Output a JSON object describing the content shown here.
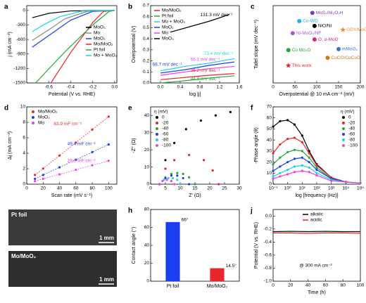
{
  "chart_data": [
    {
      "type": "line",
      "panel": "a",
      "xlabel": "Potential (V vs. RHE)",
      "ylabel": "j (mA cm⁻²)",
      "xlim": [
        -0.8,
        0.02
      ],
      "xticks": [
        -0.6,
        -0.4,
        -0.2,
        {
          "value": 0,
          "label": "0.0"
        }
      ],
      "ylim": [
        -1500,
        100
      ],
      "yticks": [
        0,
        -300,
        -600,
        -900,
        -1200,
        -1500
      ],
      "legend": "center right",
      "series": [
        {
          "name": "MoO₃",
          "color": "#000000",
          "x": [
            0,
            -0.4,
            -0.6,
            -0.75
          ],
          "values": [
            0,
            -10,
            -60,
            -150
          ]
        },
        {
          "name": "Mo",
          "color": "#8a8a8a",
          "x": [
            0,
            -0.25,
            -0.45,
            -0.6,
            -0.75
          ],
          "values": [
            0,
            -20,
            -170,
            -400,
            -620
          ]
        },
        {
          "name": "MoO₂",
          "color": "#1b3ff0",
          "x": [
            0,
            -0.2,
            -0.4,
            -0.6,
            -0.75
          ],
          "values": [
            0,
            -20,
            -200,
            -520,
            -760
          ]
        },
        {
          "name": "Mo/MoO₂",
          "color": "#e8262b",
          "x": [
            0,
            -0.1,
            -0.2,
            -0.4,
            -0.58
          ],
          "values": [
            0,
            -20,
            -250,
            -870,
            -1500
          ]
        },
        {
          "name": "Pt foil",
          "color": "#22a83a",
          "x": [
            0,
            -0.05,
            -0.2,
            -0.45,
            -0.72
          ],
          "values": [
            0,
            -20,
            -300,
            -850,
            -1500
          ]
        },
        {
          "name": "Mo + MoO₃",
          "color": "#16d4e8",
          "x": [
            0,
            -0.3,
            -0.5,
            -0.65,
            -0.75
          ],
          "values": [
            0,
            -15,
            -130,
            -300,
            -440
          ]
        }
      ]
    },
    {
      "type": "line",
      "panel": "b",
      "xlabel": "log |j|",
      "ylabel": "Overpotential (V)",
      "xlim": [
        -0.2,
        1.6
      ],
      "xticks": [
        {
          "value": 0,
          "label": "0.0"
        },
        0.4,
        0.8,
        1.2,
        1.6
      ],
      "ylim": [
        0,
        0.7
      ],
      "yticks": [
        {
          "value": 0,
          "label": "0.0"
        },
        0.1,
        0.2,
        0.3,
        0.4,
        0.5,
        0.6,
        0.7
      ],
      "legend": "upper left",
      "series": [
        {
          "name": "Mo/MoO₂",
          "color": "#e8262b",
          "x": [
            0,
            0.5,
            1.0,
            1.5
          ],
          "values": [
            0.03,
            0.05,
            0.07,
            0.085
          ]
        },
        {
          "name": "Pt foil",
          "color": "#22a83a",
          "x": [
            0,
            0.5,
            1.0,
            1.5
          ],
          "values": [
            0.0,
            0.02,
            0.045,
            0.065
          ]
        },
        {
          "name": "Mo + MoO₃",
          "color": "#16d4e8",
          "x": [
            0,
            0.5,
            1.0,
            1.5
          ],
          "values": [
            0.11,
            0.15,
            0.18,
            0.22
          ]
        },
        {
          "name": "MoO₂",
          "color": "#1b3ff0",
          "x": [
            0,
            0.5,
            1.0,
            1.5
          ],
          "values": [
            0.09,
            0.12,
            0.16,
            0.19
          ]
        },
        {
          "name": "Mo",
          "color": "#ee3fe8",
          "x": [
            0,
            0.5,
            1.0,
            1.5
          ],
          "values": [
            0.07,
            0.1,
            0.13,
            0.15
          ]
        },
        {
          "name": "MoO₃",
          "color": "#000000",
          "x": [
            0.2,
            0.6,
            1.0,
            1.4
          ],
          "values": [
            0.46,
            0.51,
            0.56,
            0.62
          ]
        }
      ],
      "annotations": [
        {
          "text": "131.3 mV dec⁻¹",
          "color": "#000000"
        },
        {
          "text": "73.4 mV dec⁻¹",
          "color": "#16d4e8"
        },
        {
          "text": "68.7 mV dec⁻¹",
          "color": "#1b3ff0"
        },
        {
          "text": "55.1 mV dec⁻¹",
          "color": "#ee3fe8"
        },
        {
          "text": "36.2 mV dec⁻¹",
          "color": "#e8262b"
        },
        {
          "text": "44.8 mV dec⁻¹",
          "color": "#22a83a"
        }
      ]
    },
    {
      "type": "scatter",
      "panel": "c",
      "xlabel": "Overpotential @ 10 mA cm⁻² (mV)",
      "ylabel": "Tafel slope (mV dec⁻¹)",
      "xlim": [
        0,
        200
      ],
      "xticks": [
        0,
        50,
        100,
        150,
        200
      ],
      "ylim": [
        0,
        160
      ],
      "point_labels": true,
      "series": [
        {
          "name": "MoS₂/Ni₃O₂H",
          "color": "#7b3fb0",
          "marker": "circle",
          "x": [
            90
          ],
          "values": [
            145
          ]
        },
        {
          "name": "Co-WO",
          "color": "#16b4e8",
          "marker": "circle",
          "x": [
            60
          ],
          "values": [
            128
          ]
        },
        {
          "name": "NiO/Ni",
          "color": "#000000",
          "marker": "circle",
          "x": [
            95
          ],
          "values": [
            118
          ]
        },
        {
          "name": "Ni-MoO₂/NF",
          "color": "#b04fe0",
          "marker": "circle",
          "x": [
            45
          ],
          "values": [
            103
          ]
        },
        {
          "name": "GDY/MoO",
          "color": "#f08a30",
          "marker": "star",
          "x": [
            160
          ],
          "values": [
            110
          ]
        },
        {
          "name": "O, α-MoO",
          "color": "#e0208a",
          "marker": "circle",
          "x": [
            95
          ],
          "values": [
            90
          ]
        },
        {
          "name": "Co Mo₂O",
          "color": "#22a83a",
          "marker": "circle",
          "x": [
            35
          ],
          "values": [
            68
          ]
        },
        {
          "name": "mMoO₂",
          "color": "#3a6fe0",
          "marker": "circle",
          "x": [
            150
          ],
          "values": [
            70
          ]
        },
        {
          "name": "CuCO/CuCoO",
          "color": "#c87a20",
          "marker": "circle",
          "x": [
            125
          ],
          "values": [
            52
          ]
        },
        {
          "name": "This work",
          "color": "#e8262b",
          "marker": "star",
          "x": [
            35
          ],
          "values": [
            36
          ]
        }
      ]
    },
    {
      "type": "scatter",
      "panel": "d",
      "xlabel": "Scan rate (mV s⁻¹)",
      "ylabel": "Δj (mA cm⁻²)",
      "xlim": [
        0,
        110
      ],
      "xticks": [
        0,
        20,
        40,
        60,
        80,
        100
      ],
      "ylim": [
        0,
        10
      ],
      "yticks": [
        0,
        2,
        4,
        6,
        8,
        10
      ],
      "legend": "upper left",
      "fit_lines": true,
      "series": [
        {
          "name": "Mo/MoO₂",
          "color": "#e8262b",
          "x": [
            10,
            20,
            40,
            60,
            80,
            100
          ],
          "values": [
            1.19,
            2.03,
            3.71,
            5.38,
            7.06,
            8.74
          ]
        },
        {
          "name": "MoO₂",
          "color": "#1b3ff0",
          "x": [
            10,
            20,
            40,
            60,
            80,
            100
          ],
          "values": [
            0.69,
            1.19,
            2.18,
            3.16,
            4.15,
            5.14
          ]
        },
        {
          "name": "Mo",
          "color": "#ee3fe8",
          "x": [
            10,
            20,
            40,
            60,
            80,
            100
          ],
          "values": [
            0.39,
            0.69,
            1.27,
            1.86,
            2.44,
            3.03
          ]
        }
      ],
      "annotations": [
        {
          "text": "83.9 mF cm⁻²",
          "color": "#e8262b"
        },
        {
          "text": "49.4 mF cm⁻²",
          "color": "#1b3ff0"
        },
        {
          "text": "29.3 mF cm⁻²",
          "color": "#ee3fe8"
        }
      ]
    },
    {
      "type": "scatter",
      "panel": "e",
      "xlabel": "Z' (Ω)",
      "ylabel": "-Z'' (Ω)",
      "xlim": [
        0,
        30
      ],
      "xticks": [
        0,
        5,
        10,
        15,
        20,
        25,
        30
      ],
      "ylim": [
        0,
        45
      ],
      "yticks": [
        0,
        10,
        20,
        30,
        40
      ],
      "legend": "upper left",
      "legend_title": "η (mV)",
      "series": [
        {
          "name": "0",
          "color": "#000000",
          "x": [
            3,
            5,
            8,
            12,
            17,
            22,
            27
          ],
          "values": [
            0,
            14,
            24,
            32,
            37,
            40,
            42
          ]
        },
        {
          "name": "-20",
          "color": "#e8262b",
          "x": [
            3,
            5,
            8,
            13,
            18,
            21,
            23
          ],
          "values": [
            0,
            9,
            14,
            17,
            14,
            8,
            0
          ]
        },
        {
          "name": "-40",
          "color": "#22a83a",
          "x": [
            3,
            5,
            7,
            9,
            11,
            13,
            15
          ],
          "values": [
            0,
            4,
            6,
            6.5,
            6,
            4,
            0
          ]
        },
        {
          "name": "-60",
          "color": "#1b3ff0",
          "x": [
            3,
            5,
            7,
            9,
            11,
            13
          ],
          "values": [
            0,
            3.5,
            5,
            5,
            3.5,
            0
          ]
        },
        {
          "name": "-80",
          "color": "#16d4e8",
          "x": [
            3,
            4.5,
            6,
            7.5,
            9,
            10
          ],
          "values": [
            0,
            2.5,
            3.5,
            3.5,
            2.5,
            0
          ]
        },
        {
          "name": "-100",
          "color": "#ee3fe8",
          "x": [
            3,
            4,
            5.5,
            7,
            8
          ],
          "values": [
            0,
            1.8,
            2.5,
            1.8,
            0
          ]
        }
      ]
    },
    {
      "type": "line",
      "panel": "f",
      "xlabel": "log [frequency (Hz)]",
      "ylabel": "-Phase angle (θ)",
      "xlog": true,
      "markers": true,
      "xlim": [
        0.1,
        100000
      ],
      "xticks": [
        {
          "value": 0.1,
          "label": "10⁻¹"
        },
        {
          "value": 1,
          "label": "10⁰"
        },
        {
          "value": 10,
          "label": "10¹"
        },
        {
          "value": 100,
          "label": "10²"
        },
        {
          "value": 1000,
          "label": "10³"
        },
        {
          "value": 10000,
          "label": "10⁴"
        },
        {
          "value": 100000,
          "label": "10⁵"
        }
      ],
      "ylim": [
        0,
        70
      ],
      "yticks": [
        0,
        10,
        20,
        30,
        40,
        50,
        60,
        70
      ],
      "legend": "upper right",
      "legend_title": "η (mV)",
      "series": [
        {
          "name": "0",
          "color": "#000000",
          "x": [
            0.1,
            0.3,
            1,
            3,
            10,
            30,
            100,
            1000,
            10000,
            100000
          ],
          "values": [
            52,
            57,
            58,
            54,
            44,
            30,
            18,
            6,
            2,
            1
          ]
        },
        {
          "name": "-20",
          "color": "#e8262b",
          "x": [
            0.1,
            0.3,
            1,
            3,
            10,
            30,
            100,
            1000,
            10000,
            100000
          ],
          "values": [
            28,
            36,
            41,
            42,
            38,
            28,
            17,
            6,
            2,
            1
          ]
        },
        {
          "name": "-40",
          "color": "#22a83a",
          "x": [
            0.1,
            0.3,
            1,
            3,
            10,
            30,
            100,
            1000,
            10000,
            100000
          ],
          "values": [
            18,
            24,
            29,
            31,
            30,
            24,
            15,
            5,
            2,
            1
          ]
        },
        {
          "name": "-60",
          "color": "#1b3ff0",
          "x": [
            0.1,
            0.3,
            1,
            3,
            10,
            30,
            100,
            1000,
            10000,
            100000
          ],
          "values": [
            12,
            16,
            20,
            23,
            24,
            20,
            13,
            5,
            2,
            1
          ]
        },
        {
          "name": "-80",
          "color": "#16d4e8",
          "x": [
            0.1,
            0.3,
            1,
            3,
            10,
            30,
            100,
            1000,
            10000,
            100000
          ],
          "values": [
            7,
            10,
            13,
            16,
            17,
            15,
            10,
            4,
            2,
            1
          ]
        },
        {
          "name": "-100",
          "color": "#ee3fe8",
          "x": [
            0.1,
            0.3,
            1,
            3,
            10,
            30,
            100,
            1000,
            10000,
            100000
          ],
          "values": [
            5,
            7,
            9,
            11,
            12,
            11,
            8,
            3,
            2,
            1
          ]
        }
      ]
    },
    {
      "type": "photo",
      "panel": "g",
      "labels": [
        "Pt foil",
        "1 mm",
        "Mo/MoO₂",
        "1 mm"
      ]
    },
    {
      "type": "bar",
      "panel": "h",
      "ylabel": "Contact angle (°)",
      "categories": [
        "Pt foil",
        "Mo/MoO₂"
      ],
      "values": [
        66,
        14.5
      ],
      "value_labels": [
        "66°",
        "14.5°"
      ],
      "colors": [
        "#1b3ff0",
        "#e8262b"
      ],
      "ylim": [
        0,
        80
      ],
      "yticks": [
        0,
        20,
        40,
        60,
        80
      ]
    },
    {
      "type": "line",
      "panel": "j",
      "xlabel": "Time (h)",
      "ylabel": "Potential (V vs. RHE)",
      "xlim": [
        0,
        100
      ],
      "xticks": [
        0,
        20,
        40,
        60,
        80,
        100
      ],
      "ylim": [
        -1.0,
        0.1
      ],
      "yticks": [
        {
          "value": 0,
          "label": "0.0"
        },
        -0.2,
        -0.4,
        -0.6,
        -0.8,
        {
          "value": -1,
          "label": "-1.0"
        }
      ],
      "legend": "upper center",
      "series": [
        {
          "name": "alkalic",
          "color": "#000000",
          "x": [
            0,
            20,
            40,
            60,
            80,
            100
          ],
          "values": [
            -0.24,
            -0.235,
            -0.24,
            -0.235,
            -0.24,
            -0.24
          ]
        },
        {
          "name": "acidic",
          "color": "#e8262b",
          "x": [
            0,
            20,
            40,
            60,
            80,
            100
          ],
          "values": [
            -0.26,
            -0.26,
            -0.265,
            -0.26,
            -0.26,
            -0.265
          ]
        }
      ],
      "annotations": [
        {
          "text": "@ 300 mA cm⁻²",
          "color": "#000000"
        }
      ]
    }
  ]
}
